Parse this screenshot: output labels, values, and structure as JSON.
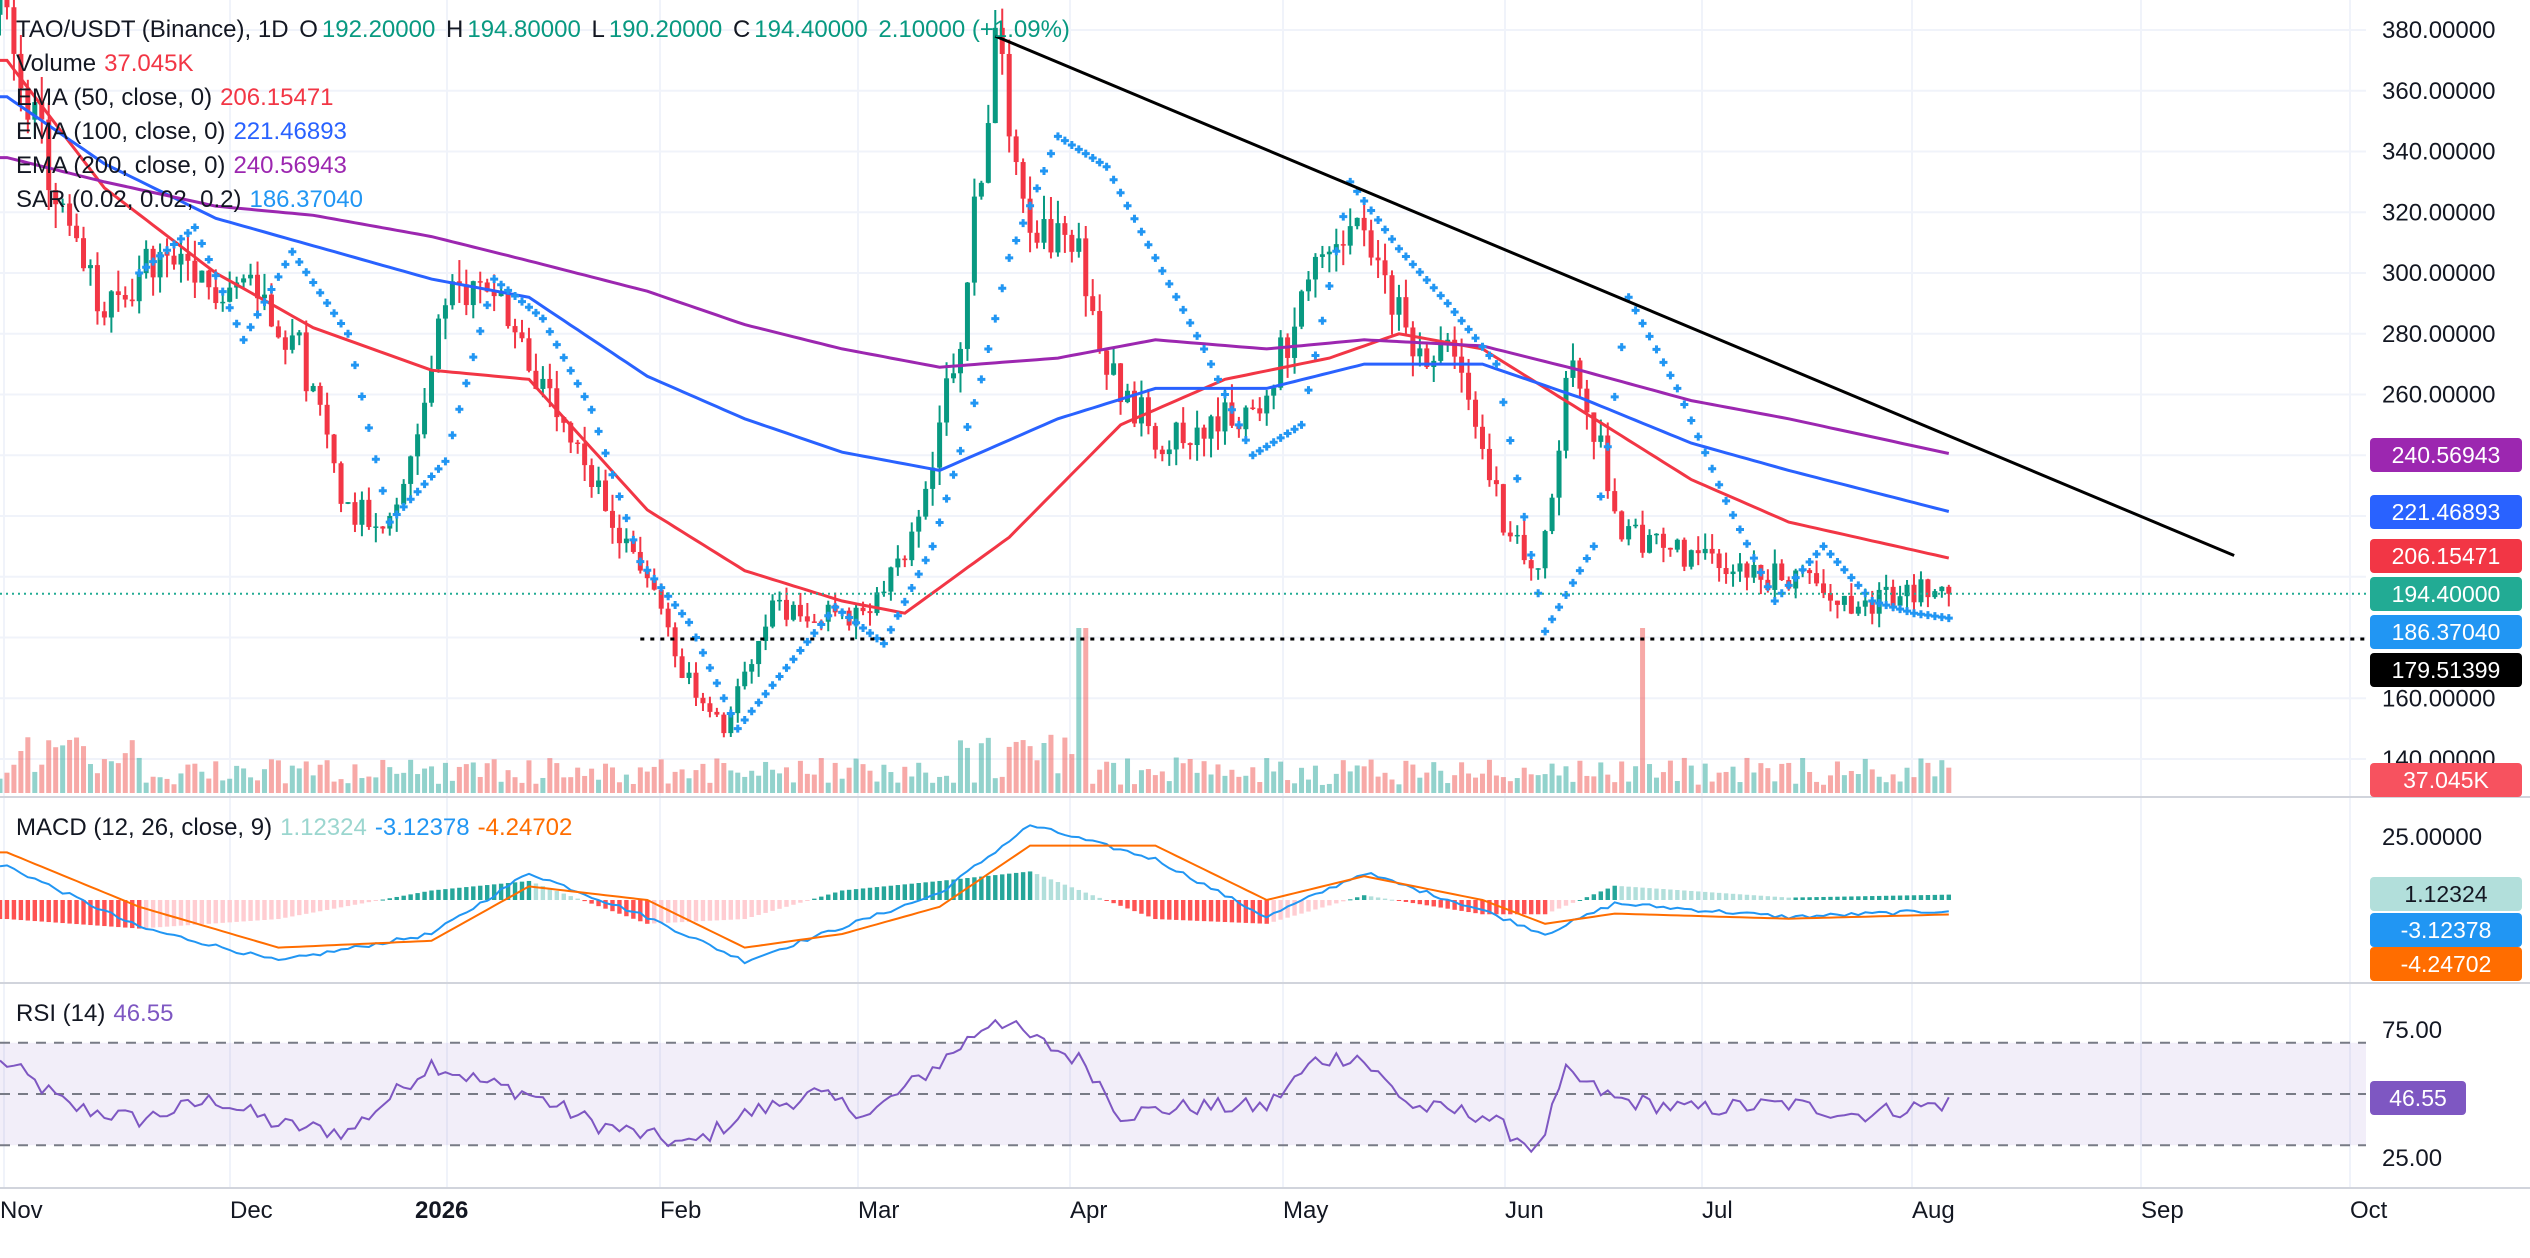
{
  "header": {
    "symbol": "TAO/USDT (Binance), 1D",
    "open_label": "O",
    "open": "192.20000",
    "high_label": "H",
    "high": "194.80000",
    "low_label": "L",
    "low": "190.20000",
    "close_label": "C",
    "close": "194.40000",
    "change": "2.10000 (+1.09%)"
  },
  "legends": {
    "volume_label": "Volume",
    "volume_value": "37.045K",
    "ema50_label": "EMA (50, close, 0)",
    "ema50_value": "206.15471",
    "ema100_label": "EMA (100, close, 0)",
    "ema100_value": "221.46893",
    "ema200_label": "EMA (200, close, 0)",
    "ema200_value": "240.56943",
    "sar_label": "SAR (0.02, 0.02, 0.2)",
    "sar_value": "186.37040",
    "macd_label": "MACD (12, 26, close, 9)",
    "macd_hist_value": "1.12324",
    "macd_value": "-3.12378",
    "macd_signal_value": "-4.24702",
    "rsi_label": "RSI (14)",
    "rsi_value": "46.55"
  },
  "price_tags": {
    "ema200": "240.56943",
    "ema100": "221.46893",
    "ema50": "206.15471",
    "last": "194.40000",
    "sar": "186.37040",
    "support": "179.51399",
    "volume": "37.045K",
    "macd_hist": "1.12324",
    "macd": "-3.12378",
    "macd_signal": "-4.24702",
    "rsi": "46.55"
  },
  "colors": {
    "up": "#26a69a",
    "down": "#ef5350",
    "up_dark": "#089981",
    "down_dark": "#f23645",
    "ema50": "#f23645",
    "ema100": "#2962ff",
    "ema200": "#9c27b0",
    "sar": "#2196f3",
    "macd": "#2196f3",
    "signal": "#ff6d00",
    "rsi": "#7e57c2",
    "last_price": "#22ab94",
    "support": "#000000"
  },
  "chart_data": {
    "type": "line",
    "title": "TAO/USDT (Binance), 1D",
    "x_labels": [
      "Nov",
      "Dec",
      "2026",
      "Feb",
      "Mar",
      "Apr",
      "May",
      "Jun",
      "Jul",
      "Aug",
      "Sep",
      "Oct"
    ],
    "price_axis": {
      "ticks": [
        "380.00000",
        "360.00000",
        "340.00000",
        "320.00000",
        "300.00000",
        "280.00000",
        "260.00000",
        "160.00000",
        "140.00000"
      ],
      "ylim": [
        135,
        386
      ]
    },
    "macd_axis": {
      "ticks": [
        "25.00000"
      ],
      "ylim": [
        -25,
        33
      ]
    },
    "rsi_axis": {
      "ticks": [
        "75.00",
        "25.00"
      ],
      "ylim": [
        15,
        85
      ],
      "bands": [
        30,
        50,
        70
      ]
    },
    "last_close": 194.4,
    "support_level": 179.51399,
    "trendline": {
      "from": [
        "2026-03-23",
        378
      ],
      "to": [
        "2026-09-17",
        207
      ]
    },
    "price_path": [
      [
        "2025-11-01",
        385
      ],
      [
        "2025-11-08",
        325
      ],
      [
        "2025-11-15",
        285
      ],
      [
        "2025-11-22",
        305
      ],
      [
        "2025-11-29",
        295
      ],
      [
        "2025-12-06",
        298
      ],
      [
        "2025-12-13",
        275
      ],
      [
        "2025-12-20",
        222
      ],
      [
        "2025-12-27",
        220
      ],
      [
        "2026-01-03",
        290
      ],
      [
        "2026-01-10",
        298
      ],
      [
        "2026-01-17",
        260
      ],
      [
        "2026-01-24",
        230
      ],
      [
        "2026-01-31",
        205
      ],
      [
        "2026-02-07",
        165
      ],
      [
        "2026-02-12",
        148
      ],
      [
        "2026-02-18",
        188
      ],
      [
        "2026-02-25",
        190
      ],
      [
        "2026-03-04",
        185
      ],
      [
        "2026-03-11",
        210
      ],
      [
        "2026-03-18",
        280
      ],
      [
        "2026-03-23",
        375
      ],
      [
        "2026-03-28",
        320
      ],
      [
        "2026-04-04",
        305
      ],
      [
        "2026-04-09",
        265
      ],
      [
        "2026-04-16",
        245
      ],
      [
        "2026-04-23",
        250
      ],
      [
        "2026-04-30",
        255
      ],
      [
        "2026-05-07",
        295
      ],
      [
        "2026-05-14",
        315
      ],
      [
        "2026-05-21",
        280
      ],
      [
        "2026-05-28",
        270
      ],
      [
        "2026-06-04",
        220
      ],
      [
        "2026-06-09",
        198
      ],
      [
        "2026-06-14",
        275
      ],
      [
        "2026-06-21",
        215
      ],
      [
        "2026-06-28",
        208
      ],
      [
        "2026-07-05",
        205
      ],
      [
        "2026-07-12",
        200
      ],
      [
        "2026-07-19",
        198
      ],
      [
        "2026-07-26",
        190
      ],
      [
        "2026-08-02",
        195
      ],
      [
        "2026-08-07",
        194.4
      ]
    ],
    "series": [
      {
        "name": "EMA (50, close, 0)",
        "values": [
          [
            "2025-11-01",
            370
          ],
          [
            "2025-11-15",
            328
          ],
          [
            "2025-12-01",
            300
          ],
          [
            "2025-12-15",
            282
          ],
          [
            "2026-01-01",
            268
          ],
          [
            "2026-01-15",
            265
          ],
          [
            "2026-02-01",
            222
          ],
          [
            "2026-02-15",
            202
          ],
          [
            "2026-03-01",
            192
          ],
          [
            "2026-03-10",
            188
          ],
          [
            "2026-03-25",
            213
          ],
          [
            "2026-04-10",
            250
          ],
          [
            "2026-04-25",
            265
          ],
          [
            "2026-05-10",
            272
          ],
          [
            "2026-05-20",
            280
          ],
          [
            "2026-06-01",
            275
          ],
          [
            "2026-06-15",
            255
          ],
          [
            "2026-07-01",
            232
          ],
          [
            "2026-07-15",
            218
          ],
          [
            "2026-08-07",
            206.15
          ]
        ]
      },
      {
        "name": "EMA (100, close, 0)",
        "values": [
          [
            "2025-11-01",
            358
          ],
          [
            "2025-11-15",
            336
          ],
          [
            "2025-12-01",
            318
          ],
          [
            "2026-01-01",
            298
          ],
          [
            "2026-01-15",
            292
          ],
          [
            "2026-02-01",
            266
          ],
          [
            "2026-02-15",
            252
          ],
          [
            "2026-03-01",
            241
          ],
          [
            "2026-03-15",
            235
          ],
          [
            "2026-04-01",
            252
          ],
          [
            "2026-04-15",
            262
          ],
          [
            "2026-05-01",
            262
          ],
          [
            "2026-05-15",
            270
          ],
          [
            "2026-06-01",
            270
          ],
          [
            "2026-06-15",
            259
          ],
          [
            "2026-07-01",
            244
          ],
          [
            "2026-07-15",
            235
          ],
          [
            "2026-08-07",
            221.47
          ]
        ]
      },
      {
        "name": "EMA (200, close, 0)",
        "values": [
          [
            "2025-11-01",
            338
          ],
          [
            "2025-11-15",
            330
          ],
          [
            "2025-12-01",
            322
          ],
          [
            "2025-12-15",
            319
          ],
          [
            "2026-01-01",
            312
          ],
          [
            "2026-01-15",
            304
          ],
          [
            "2026-02-01",
            294
          ],
          [
            "2026-02-15",
            283
          ],
          [
            "2026-03-01",
            275
          ],
          [
            "2026-03-15",
            269
          ],
          [
            "2026-04-01",
            272
          ],
          [
            "2026-04-15",
            278
          ],
          [
            "2026-05-01",
            275
          ],
          [
            "2026-05-15",
            278
          ],
          [
            "2026-06-01",
            276
          ],
          [
            "2026-06-15",
            268
          ],
          [
            "2026-07-01",
            258
          ],
          [
            "2026-07-15",
            252
          ],
          [
            "2026-08-07",
            240.57
          ]
        ]
      }
    ],
    "sar": [
      [
        "2025-11-20",
        300
      ],
      [
        "2025-11-28",
        315
      ],
      [
        "2025-12-05",
        278
      ],
      [
        "2025-12-12",
        307
      ],
      [
        "2025-12-20",
        280
      ],
      [
        "2025-12-26",
        218
      ],
      [
        "2026-01-03",
        238
      ],
      [
        "2026-01-10",
        298
      ],
      [
        "2026-01-17",
        285
      ],
      [
        "2026-01-24",
        255
      ],
      [
        "2026-01-31",
        205
      ],
      [
        "2026-02-07",
        185
      ],
      [
        "2026-02-14",
        150
      ],
      [
        "2026-02-21",
        170
      ],
      [
        "2026-02-28",
        190
      ],
      [
        "2026-03-07",
        178
      ],
      [
        "2026-03-14",
        210
      ],
      [
        "2026-03-21",
        265
      ],
      [
        "2026-03-25",
        305
      ],
      [
        "2026-04-01",
        345
      ],
      [
        "2026-04-08",
        335
      ],
      [
        "2026-04-15",
        305
      ],
      [
        "2026-04-22",
        275
      ],
      [
        "2026-04-29",
        240
      ],
      [
        "2026-05-06",
        250
      ],
      [
        "2026-05-13",
        330
      ],
      [
        "2026-05-20",
        308
      ],
      [
        "2026-05-27",
        290
      ],
      [
        "2026-06-03",
        270
      ],
      [
        "2026-06-10",
        182
      ],
      [
        "2026-06-17",
        210
      ],
      [
        "2026-06-22",
        292
      ],
      [
        "2026-06-29",
        262
      ],
      [
        "2026-07-06",
        225
      ],
      [
        "2026-07-13",
        192
      ],
      [
        "2026-07-20",
        210
      ],
      [
        "2026-07-27",
        192
      ],
      [
        "2026-08-02",
        188
      ],
      [
        "2026-08-07",
        186.37
      ]
    ],
    "macd": [
      [
        "2025-11-01",
        10
      ],
      [
        "2025-11-20",
        -8
      ],
      [
        "2025-12-10",
        -18
      ],
      [
        "2026-01-01",
        -10
      ],
      [
        "2026-01-15",
        8
      ],
      [
        "2026-02-01",
        -5
      ],
      [
        "2026-02-15",
        -18
      ],
      [
        "2026-03-01",
        -8
      ],
      [
        "2026-03-15",
        2
      ],
      [
        "2026-03-28",
        22
      ],
      [
        "2026-04-15",
        12
      ],
      [
        "2026-05-01",
        -5
      ],
      [
        "2026-05-15",
        8
      ],
      [
        "2026-06-01",
        -3
      ],
      [
        "2026-06-10",
        -10
      ],
      [
        "2026-06-20",
        -1
      ],
      [
        "2026-07-15",
        -5
      ],
      [
        "2026-08-07",
        -3.12
      ]
    ],
    "macd_signal": [
      [
        "2025-11-01",
        14
      ],
      [
        "2025-11-20",
        -2
      ],
      [
        "2025-12-10",
        -14
      ],
      [
        "2026-01-01",
        -12
      ],
      [
        "2026-01-15",
        4
      ],
      [
        "2026-02-01",
        0
      ],
      [
        "2026-02-15",
        -14
      ],
      [
        "2026-03-01",
        -10
      ],
      [
        "2026-03-15",
        -2
      ],
      [
        "2026-03-28",
        16
      ],
      [
        "2026-04-15",
        16
      ],
      [
        "2026-05-01",
        0
      ],
      [
        "2026-05-15",
        7
      ],
      [
        "2026-06-01",
        0
      ],
      [
        "2026-06-10",
        -7
      ],
      [
        "2026-06-20",
        -4
      ],
      [
        "2026-07-15",
        -5.5
      ],
      [
        "2026-08-07",
        -4.25
      ]
    ],
    "macd_hist_last": 1.12324,
    "rsi": [
      [
        "2025-11-01",
        62
      ],
      [
        "2025-11-10",
        45
      ],
      [
        "2025-11-20",
        40
      ],
      [
        "2025-12-01",
        48
      ],
      [
        "2025-12-10",
        38
      ],
      [
        "2025-12-20",
        35
      ],
      [
        "2026-01-01",
        62
      ],
      [
        "2026-01-08",
        55
      ],
      [
        "2026-01-15",
        50
      ],
      [
        "2026-01-25",
        38
      ],
      [
        "2026-02-07",
        30
      ],
      [
        "2026-02-15",
        42
      ],
      [
        "2026-02-25",
        50
      ],
      [
        "2026-03-05",
        42
      ],
      [
        "2026-03-15",
        62
      ],
      [
        "2026-03-23",
        80
      ],
      [
        "2026-03-28",
        72
      ],
      [
        "2026-04-05",
        62
      ],
      [
        "2026-04-10",
        42
      ],
      [
        "2026-04-20",
        45
      ],
      [
        "2026-05-01",
        45
      ],
      [
        "2026-05-08",
        63
      ],
      [
        "2026-05-14",
        65
      ],
      [
        "2026-05-22",
        45
      ],
      [
        "2026-06-01",
        42
      ],
      [
        "2026-06-09",
        28
      ],
      [
        "2026-06-13",
        58
      ],
      [
        "2026-06-20",
        48
      ],
      [
        "2026-07-01",
        44
      ],
      [
        "2026-07-15",
        46
      ],
      [
        "2026-07-25",
        42
      ],
      [
        "2026-08-07",
        46.55
      ]
    ]
  }
}
